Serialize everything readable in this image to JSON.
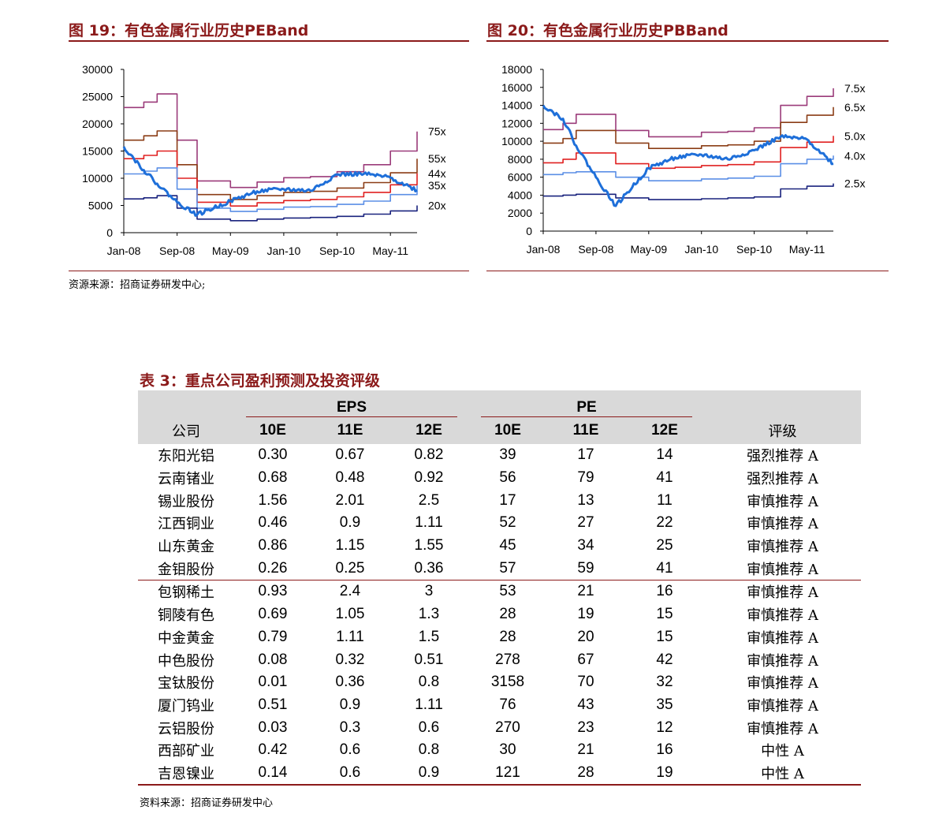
{
  "fig19": {
    "title": "图 19：有色金属行业历史PEBand"
  },
  "fig20": {
    "title": "图 20：有色金属行业历史PBBand"
  },
  "source_figs": "资源来源：招商证券研发中心;",
  "table3": {
    "title": "表 3：重点公司盈利预测及投资评级",
    "group_eps": "EPS",
    "group_pe": "PE",
    "col_company": "公司",
    "col_rating": "评级",
    "eps_years": [
      "10E",
      "11E",
      "12E"
    ],
    "pe_years": [
      "10E",
      "11E",
      "12E"
    ],
    "rows": [
      [
        "东阳光铝",
        "0.30",
        "0.67",
        "0.82",
        "39",
        "17",
        "14",
        "强烈推荐 A"
      ],
      [
        "云南锗业",
        "0.68",
        "0.48",
        "0.92",
        "56",
        "79",
        "41",
        "强烈推荐 A"
      ],
      [
        "锡业股份",
        "1.56",
        "2.01",
        "2.5",
        "17",
        "13",
        "11",
        "审慎推荐 A"
      ],
      [
        "江西铜业",
        "0.46",
        "0.9",
        "1.11",
        "52",
        "27",
        "22",
        "审慎推荐 A"
      ],
      [
        "山东黄金",
        "0.86",
        "1.15",
        "1.55",
        "45",
        "34",
        "25",
        "审慎推荐 A"
      ],
      [
        "金钼股份",
        "0.26",
        "0.25",
        "0.36",
        "57",
        "59",
        "41",
        "审慎推荐 A"
      ],
      [
        "包钢稀土",
        "0.93",
        "2.4",
        "3",
        "53",
        "21",
        "16",
        "审慎推荐 A"
      ],
      [
        "铜陵有色",
        "0.69",
        "1.05",
        "1.3",
        "28",
        "19",
        "15",
        "审慎推荐 A"
      ],
      [
        "中金黄金",
        "0.79",
        "1.11",
        "1.5",
        "28",
        "20",
        "15",
        "审慎推荐 A"
      ],
      [
        "中色股份",
        "0.08",
        "0.32",
        "0.51",
        "278",
        "67",
        "42",
        "审慎推荐 A"
      ],
      [
        "宝钛股份",
        "0.01",
        "0.36",
        "0.8",
        "3158",
        "70",
        "32",
        "审慎推荐 A"
      ],
      [
        "厦门钨业",
        "0.51",
        "0.9",
        "1.11",
        "76",
        "43",
        "35",
        "审慎推荐 A"
      ],
      [
        "云铝股份",
        "0.03",
        "0.3",
        "0.6",
        "270",
        "23",
        "12",
        "审慎推荐 A"
      ],
      [
        "西部矿业",
        "0.42",
        "0.6",
        "0.8",
        "30",
        "21",
        "16",
        "中性 A"
      ],
      [
        "吉恩镍业",
        "0.14",
        "0.6",
        "0.9",
        "121",
        "28",
        "19",
        "中性 A"
      ]
    ],
    "source": "资料来源：招商证券研发中心"
  },
  "chart_data": [
    {
      "type": "line",
      "title": "图 19：有色金属行业历史PEBand",
      "x_tick_labels": [
        "Jan-08",
        "Sep-08",
        "May-09",
        "Jan-10",
        "Sep-10",
        "May-11"
      ],
      "ylim": [
        0,
        30000
      ],
      "y_ticks": [
        0,
        5000,
        10000,
        15000,
        20000,
        25000,
        30000
      ],
      "x": [
        "2008-01",
        "2008-04",
        "2008-06",
        "2008-09",
        "2008-12",
        "2009-05",
        "2009-09",
        "2010-01",
        "2010-05",
        "2010-09",
        "2011-01",
        "2011-05",
        "2011-09"
      ],
      "series": [
        {
          "name": "75x",
          "color": "#9b3b7a",
          "values": [
            23000,
            24000,
            25500,
            17000,
            9500,
            8300,
            9300,
            10100,
            10300,
            11200,
            12500,
            15000,
            18600
          ]
        },
        {
          "name": "55x",
          "color": "#8b3d16",
          "values": [
            17000,
            17800,
            18700,
            12500,
            7000,
            6100,
            6800,
            7400,
            7600,
            8200,
            9200,
            11000,
            13600
          ]
        },
        {
          "name": "44x",
          "color": "#e02020",
          "values": [
            13600,
            14200,
            15000,
            10000,
            5600,
            4900,
            5500,
            5900,
            6100,
            6600,
            7400,
            8800,
            10900
          ]
        },
        {
          "name": "35x",
          "color": "#5b8fe6",
          "values": [
            10800,
            11300,
            11900,
            8000,
            4500,
            3900,
            4300,
            4700,
            4800,
            5200,
            5800,
            7000,
            8700
          ]
        },
        {
          "name": "20x",
          "color": "#1a237e",
          "values": [
            6200,
            6400,
            6800,
            4500,
            2500,
            2200,
            2500,
            2700,
            2800,
            3000,
            3400,
            4000,
            5000
          ]
        },
        {
          "name": "",
          "color": "#1e6fd9",
          "values": [
            15800,
            11500,
            9000,
            5600,
            3300,
            5800,
            7600,
            8000,
            7700,
            10700,
            10800,
            10100,
            7800
          ]
        }
      ]
    },
    {
      "type": "line",
      "title": "图 20：有色金属行业历史PBBand",
      "x_tick_labels": [
        "Jan-08",
        "Sep-08",
        "May-09",
        "Jan-10",
        "Sep-10",
        "May-11"
      ],
      "ylim": [
        0,
        18000
      ],
      "y_ticks": [
        0,
        2000,
        4000,
        6000,
        8000,
        10000,
        12000,
        14000,
        16000,
        18000
      ],
      "x": [
        "2008-01",
        "2008-04",
        "2008-06",
        "2008-09",
        "2008-12",
        "2009-05",
        "2009-09",
        "2010-01",
        "2010-05",
        "2010-09",
        "2011-01",
        "2011-05",
        "2011-09"
      ],
      "series": [
        {
          "name": "7.5x",
          "color": "#9b3b7a",
          "values": [
            11300,
            12000,
            13000,
            13000,
            11200,
            10500,
            10500,
            11000,
            11100,
            11500,
            14000,
            15000,
            15900
          ]
        },
        {
          "name": "6.5x",
          "color": "#8b3d16",
          "values": [
            9800,
            10300,
            11200,
            11200,
            9800,
            9200,
            9200,
            9500,
            9600,
            10000,
            12100,
            12900,
            13800
          ]
        },
        {
          "name": "5.0x",
          "color": "#e02020",
          "values": [
            7600,
            8000,
            8700,
            8700,
            7500,
            7000,
            7100,
            7300,
            7400,
            7700,
            9300,
            9900,
            10600
          ]
        },
        {
          "name": "4.0x",
          "color": "#5b8fe6",
          "values": [
            6300,
            6500,
            6600,
            6600,
            6000,
            5600,
            5600,
            5800,
            5900,
            6100,
            7500,
            8000,
            8400
          ]
        },
        {
          "name": "2.5x",
          "color": "#1a237e",
          "values": [
            3900,
            4000,
            4100,
            4100,
            3700,
            3500,
            3500,
            3600,
            3700,
            3800,
            4700,
            5000,
            5300
          ]
        },
        {
          "name": "",
          "color": "#1e6fd9",
          "values": [
            14000,
            12500,
            9500,
            6000,
            2800,
            7000,
            8200,
            8500,
            8000,
            9000,
            10500,
            10200,
            7500
          ]
        }
      ]
    }
  ]
}
